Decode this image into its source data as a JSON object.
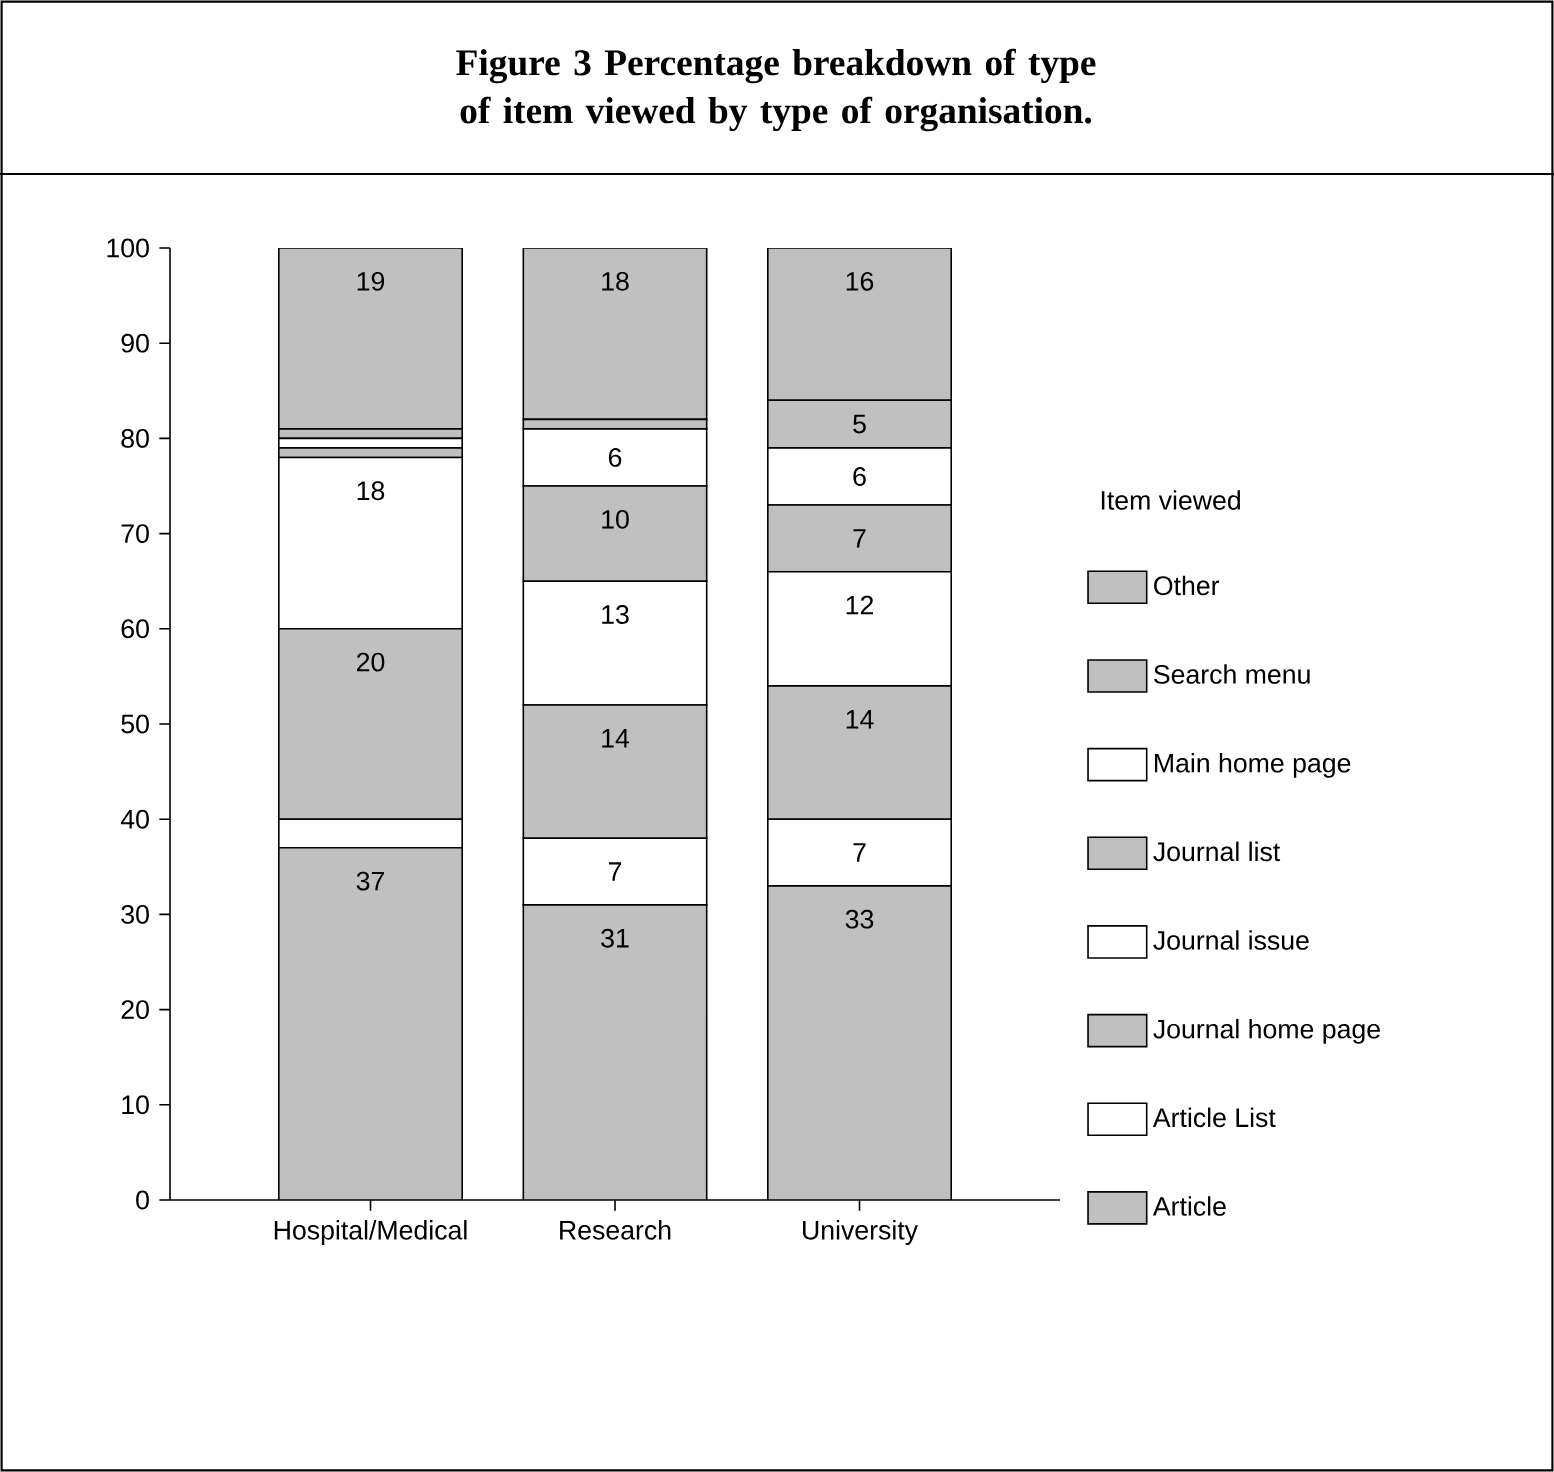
{
  "chart_data": {
    "type": "bar",
    "stacked": true,
    "title": "Figure 3 Percentage breakdown of type of item viewed by type of organisation.",
    "legend_title": "Item viewed",
    "legend": "right",
    "categories": [
      "Hospital/Medical",
      "Research",
      "University"
    ],
    "ylim": [
      0,
      100
    ],
    "yticks": [
      0,
      10,
      20,
      30,
      40,
      50,
      60,
      70,
      80,
      90,
      100
    ],
    "series": [
      {
        "name": "Article",
        "color": "#c0c0c0",
        "values": [
          37,
          31,
          33
        ],
        "value_labels": [
          "37",
          "31",
          "33"
        ]
      },
      {
        "name": "Article List",
        "color": "#ffffff",
        "values": [
          3,
          7,
          7
        ],
        "value_labels": [
          null,
          "7",
          "7"
        ]
      },
      {
        "name": "Journal home page",
        "color": "#c0c0c0",
        "values": [
          20,
          14,
          14
        ],
        "value_labels": [
          "20",
          "14",
          "14"
        ]
      },
      {
        "name": "Journal issue",
        "color": "#ffffff",
        "values": [
          18,
          13,
          12
        ],
        "value_labels": [
          "18",
          "13",
          "12"
        ]
      },
      {
        "name": "Journal list",
        "color": "#c0c0c0",
        "values": [
          1,
          10,
          7
        ],
        "value_labels": [
          null,
          "10",
          "7"
        ]
      },
      {
        "name": "Main home page",
        "color": "#ffffff",
        "values": [
          1,
          6,
          6
        ],
        "value_labels": [
          null,
          "6",
          "6"
        ]
      },
      {
        "name": "Search menu",
        "color": "#c0c0c0",
        "values": [
          1,
          1,
          5
        ],
        "value_labels": [
          null,
          null,
          "5"
        ]
      },
      {
        "name": "Other",
        "color": "#c0c0c0",
        "values": [
          19,
          18,
          16
        ],
        "value_labels": [
          "19",
          "18",
          "16"
        ]
      }
    ]
  }
}
